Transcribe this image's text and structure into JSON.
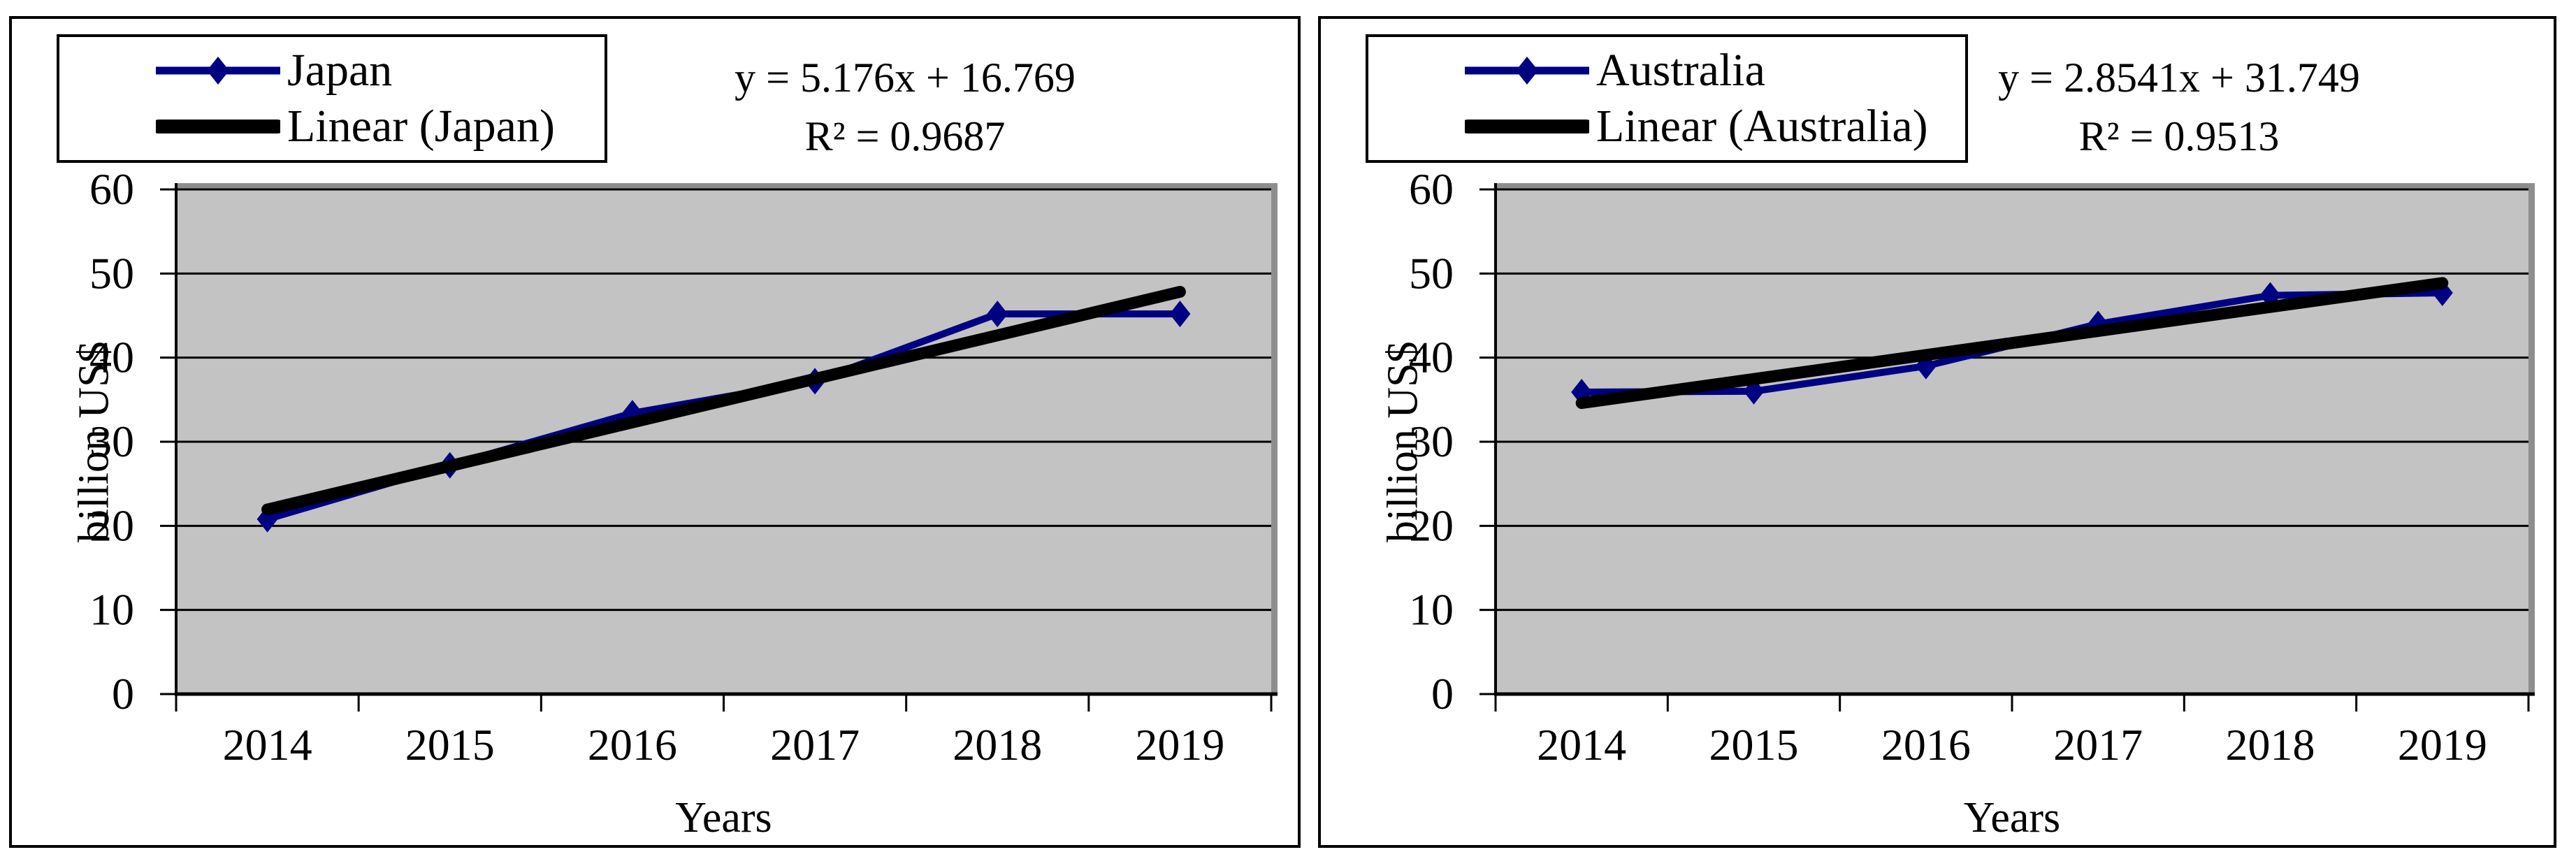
{
  "figure": {
    "background": "#ffffff",
    "panel_border_color": "#000000"
  },
  "colors": {
    "series_line": "#000082",
    "trend_line": "#000000",
    "plot_background": "#c3c3c3",
    "plot_shadow_edge": "#8e8e8e",
    "gridline": "#000000"
  },
  "chart_data": [
    {
      "type": "line",
      "panel": "left",
      "title": "",
      "xlabel": "Years",
      "ylabel": "billion US$",
      "categories": [
        "2014",
        "2015",
        "2016",
        "2017",
        "2018",
        "2019"
      ],
      "yticks": [
        0,
        10,
        20,
        30,
        40,
        50,
        60
      ],
      "ylim": [
        0,
        60
      ],
      "grid": "horizontal",
      "legend_position": "top-left",
      "series": [
        {
          "name": "Japan",
          "kind": "data",
          "marker": "diamond",
          "color": "#000082",
          "values": [
            20.8,
            27.2,
            33.4,
            37.2,
            45.2,
            45.2
          ]
        },
        {
          "name": "Linear (Japan)",
          "kind": "trendline",
          "color": "#000000",
          "slope": 5.176,
          "intercept": 16.769,
          "r_squared": 0.9687
        }
      ],
      "annotation": {
        "line1": "y = 5.176x + 16.769",
        "line2": "R² = 0.9687"
      }
    },
    {
      "type": "line",
      "panel": "right",
      "title": "",
      "xlabel": "Years",
      "ylabel": "billion US$",
      "categories": [
        "2014",
        "2015",
        "2016",
        "2017",
        "2018",
        "2019"
      ],
      "yticks": [
        0,
        10,
        20,
        30,
        40,
        50,
        60
      ],
      "ylim": [
        0,
        60
      ],
      "grid": "horizontal",
      "legend_position": "top-left",
      "series": [
        {
          "name": "Australia",
          "kind": "data",
          "marker": "diamond",
          "color": "#000082",
          "values": [
            35.9,
            36.0,
            39.0,
            44.0,
            47.4,
            47.7
          ]
        },
        {
          "name": "Linear (Australia)",
          "kind": "trendline",
          "color": "#000000",
          "slope": 2.8541,
          "intercept": 31.749,
          "r_squared": 0.9513
        }
      ],
      "annotation": {
        "line1": "y = 2.8541x + 31.749",
        "line2": "R² = 0.9513"
      }
    }
  ]
}
